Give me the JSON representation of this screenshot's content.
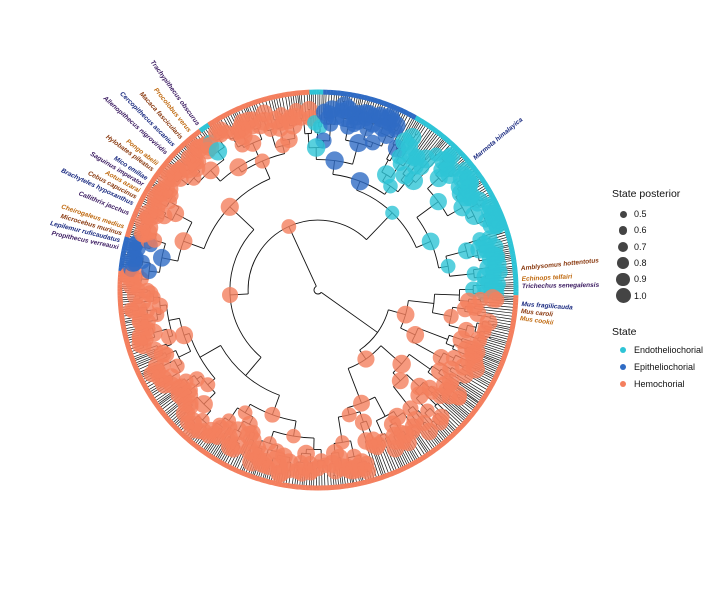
{
  "legend": {
    "posterior_title": "State posterior",
    "posterior_levels": [
      "0.5",
      "0.6",
      "0.7",
      "0.8",
      "0.9",
      "1.0"
    ],
    "state_title": "State",
    "states": [
      {
        "label": "Endotheliochorial",
        "color": "#2EC4D6"
      },
      {
        "label": "Epitheliochorial",
        "color": "#2F6BC4"
      },
      {
        "label": "Hemochorial",
        "color": "#F47F5E"
      }
    ]
  },
  "tip_label_colors": [
    "#1a2a80",
    "#8a3a10",
    "#c06a10",
    "#3a1a60"
  ],
  "tip_labels": [
    "Marmota himalayica",
    "Amblysomus hottentotus",
    "Echinops telfairi",
    "Trichechus senegalensis",
    "Mus fragilicauda",
    "Mus caroli",
    "Mus cookii",
    "Propithecus verreauxi",
    "Lepilemur ruficaudatus",
    "Microcebus murinus",
    "Cheirogaleus medius",
    "Callithrix jacchus",
    "Brachyteles hypoxanthus",
    "Cebus capucinus",
    "Aotus azarai",
    "Saguinus imperator",
    "Mico emiliae",
    "Hylobates pileatus",
    "Pongo abelii",
    "Allenopithecus nigroviridis",
    "Cercopithecus ascanius",
    "Macaca fascicularis",
    "Procolobus verus",
    "Trachypithecus obscurus"
  ]
}
